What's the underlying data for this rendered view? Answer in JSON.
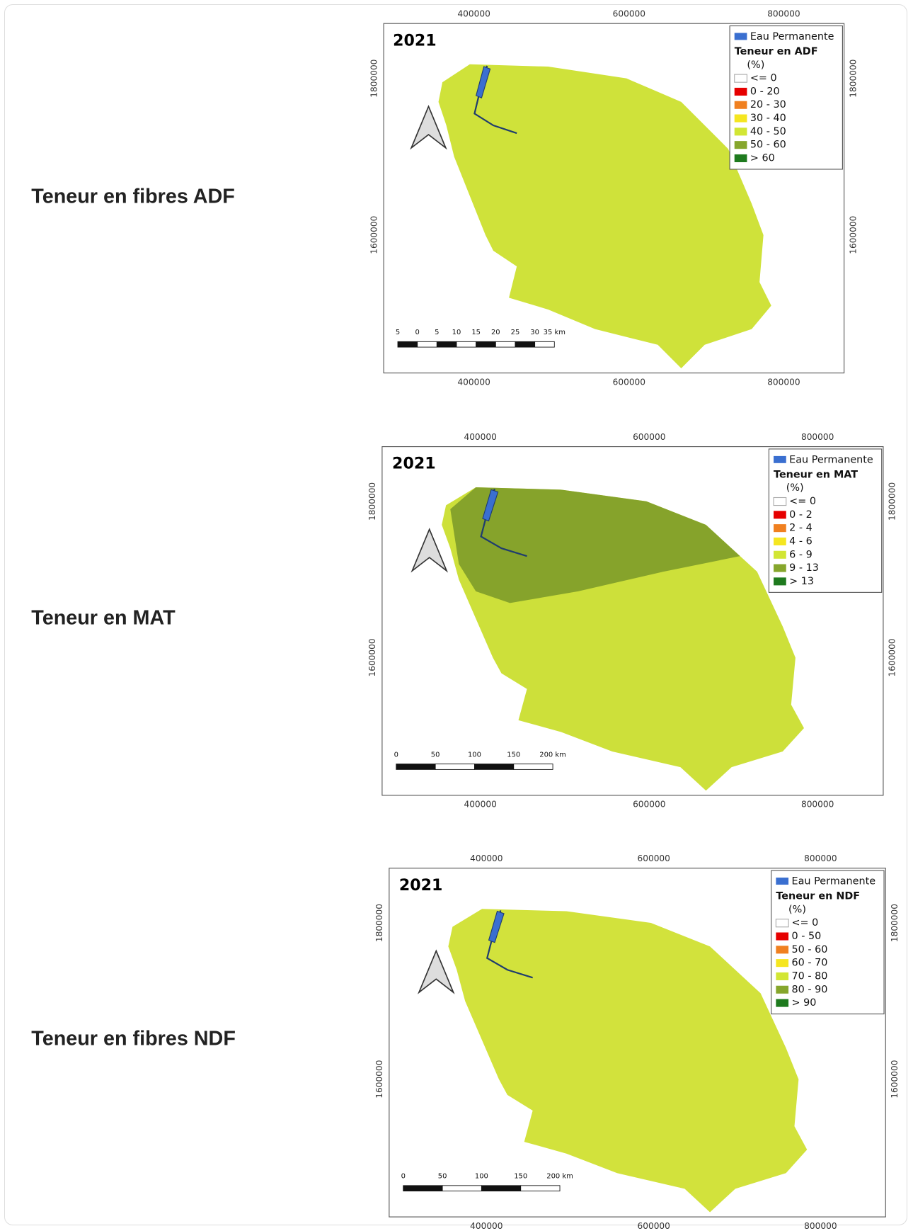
{
  "rows": [
    {
      "label": "Teneur en fibres ADF",
      "map": {
        "year": "2021",
        "region_color": "#cfe23a",
        "overlay_color": null,
        "x_ticks": [
          "400000",
          "600000",
          "800000"
        ],
        "y_ticks": [
          "1800000",
          "1600000"
        ],
        "legend": {
          "water": "Eau Permanente",
          "title": "Teneur en ADF",
          "unit": "(%)",
          "items": [
            {
              "label": "<= 0",
              "color": "#ffffff"
            },
            {
              "label": "0 - 20",
              "color": "#e60000"
            },
            {
              "label": "20 - 30",
              "color": "#f08020"
            },
            {
              "label": "30 - 40",
              "color": "#f5e620"
            },
            {
              "label": "40 - 50",
              "color": "#d2e634"
            },
            {
              "label": "50 - 60",
              "color": "#86a62c"
            },
            {
              "label": "> 60",
              "color": "#1e7a1e"
            }
          ]
        },
        "scale": [
          "5",
          "0",
          "5",
          "10",
          "15",
          "20",
          "25",
          "30",
          "35 km"
        ]
      }
    },
    {
      "label": "Teneur en MAT",
      "map": {
        "year": "2021",
        "region_color": "#cde03a",
        "overlay_color": "#7e9c2a",
        "x_ticks": [
          "400000",
          "600000",
          "800000"
        ],
        "y_ticks": [
          "1800000",
          "1600000"
        ],
        "legend": {
          "water": "Eau Permanente",
          "title": "Teneur en MAT",
          "unit": "(%)",
          "items": [
            {
              "label": "<= 0",
              "color": "#ffffff"
            },
            {
              "label": "0 - 2",
              "color": "#e60000"
            },
            {
              "label": "2 - 4",
              "color": "#f08020"
            },
            {
              "label": "4 - 6",
              "color": "#f5e620"
            },
            {
              "label": "6 - 9",
              "color": "#d2e634"
            },
            {
              "label": "9 - 13",
              "color": "#86a62c"
            },
            {
              "label": "> 13",
              "color": "#1e7a1e"
            }
          ]
        },
        "scale": [
          "0",
          "50",
          "100",
          "150",
          "200 km"
        ]
      }
    },
    {
      "label": "Teneur en fibres NDF",
      "map": {
        "year": "2021",
        "region_color": "#d2e23c",
        "overlay_color": null,
        "x_ticks": [
          "400000",
          "600000",
          "800000"
        ],
        "y_ticks": [
          "1800000",
          "1600000"
        ],
        "legend": {
          "water": "Eau Permanente",
          "title": "Teneur en NDF",
          "unit": "(%)",
          "items": [
            {
              "label": "<= 0",
              "color": "#ffffff"
            },
            {
              "label": "0 - 50",
              "color": "#e60000"
            },
            {
              "label": "50 - 60",
              "color": "#f08020"
            },
            {
              "label": "60 - 70",
              "color": "#f5e620"
            },
            {
              "label": "70 - 80",
              "color": "#d2e634"
            },
            {
              "label": "80 - 90",
              "color": "#86a62c"
            },
            {
              "label": "> 90",
              "color": "#1e7a1e"
            }
          ]
        },
        "scale": [
          "0",
          "50",
          "100",
          "150",
          "200 km"
        ]
      }
    }
  ]
}
